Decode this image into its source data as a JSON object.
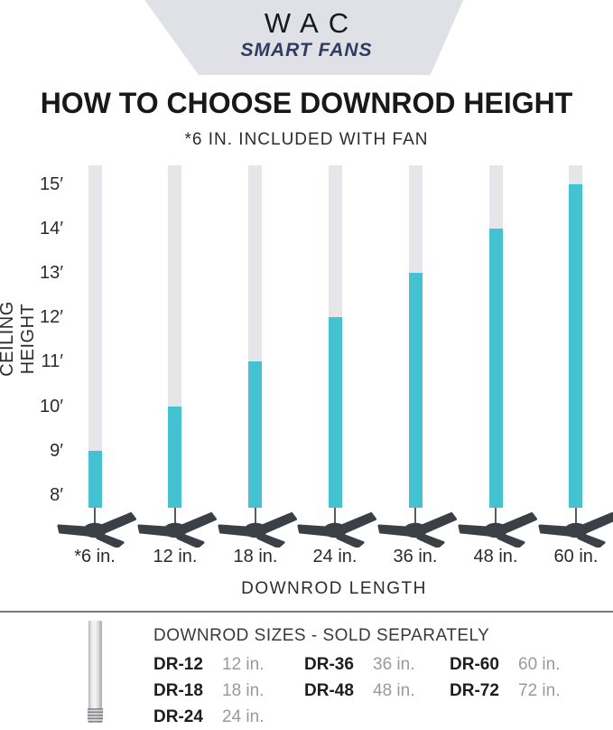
{
  "logo": {
    "brand": "WAC",
    "tagline": "SMART FANS"
  },
  "title": "HOW TO CHOOSE DOWNROD HEIGHT",
  "subtitle": "*6 IN. INCLUDED WITH FAN",
  "chart_data": {
    "type": "bar",
    "title": "HOW TO CHOOSE DOWNROD HEIGHT",
    "xlabel": "DOWNROD LENGTH",
    "ylabel": "CEILING HEIGHT",
    "categories": [
      "*6 in.",
      "12 in.",
      "18 in.",
      "24 in.",
      "36 in.",
      "48 in.",
      "60 in."
    ],
    "values": [
      9,
      10,
      11,
      12,
      13,
      14,
      15
    ],
    "y_ticks": [
      "15′",
      "14′",
      "13′",
      "12′",
      "11′",
      "10′",
      "9′",
      "8′"
    ],
    "ylim": [
      8,
      15
    ],
    "legend": null,
    "grid": false,
    "bar_color": "#45c2d1",
    "track_color": "#e4e6e9",
    "note": "Teal portion of each rod rises from the fan to the recommended ceiling height for that downrod length; gray track continues above."
  },
  "footer": {
    "heading": "DOWNROD SIZES - SOLD SEPARATELY",
    "items": [
      {
        "code": "DR-12",
        "size": "12 in."
      },
      {
        "code": "DR-18",
        "size": "18 in."
      },
      {
        "code": "DR-24",
        "size": "24 in."
      },
      {
        "code": "DR-36",
        "size": "36 in."
      },
      {
        "code": "DR-48",
        "size": "48 in."
      },
      {
        "code": "DR-60",
        "size": "60 in."
      },
      {
        "code": "DR-72",
        "size": "72 in."
      }
    ],
    "columns": [
      [
        0,
        1,
        2
      ],
      [
        3,
        4
      ],
      [
        5,
        6
      ]
    ]
  },
  "colors": {
    "accent_teal": "#45c2d1",
    "track_gray": "#e4e6e9",
    "fan_charcoal": "#3b4046",
    "logo_bg": "#dfe1e6",
    "tagline_navy": "#313c60"
  }
}
